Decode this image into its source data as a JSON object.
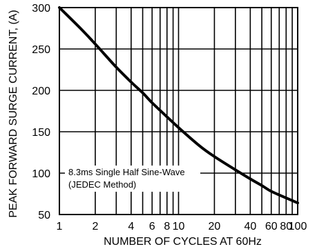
{
  "chart_data": {
    "type": "line",
    "xlabel": "NUMBER OF CYCLES AT 60Hz",
    "ylabel": "PEAK FORWARD SURGE CURRENT, (A)",
    "x_scale": "log",
    "xlim": [
      1,
      100
    ],
    "ylim": [
      50,
      300
    ],
    "x_ticks": [
      1,
      2,
      4,
      6,
      8,
      10,
      20,
      40,
      60,
      80,
      100
    ],
    "x_tick_labels": [
      "1",
      "2",
      "4",
      "6",
      "8",
      "10",
      "20",
      "40",
      "60",
      "80",
      "100"
    ],
    "y_ticks": [
      50,
      100,
      150,
      200,
      250,
      300
    ],
    "y_tick_labels": [
      "50",
      "100",
      "150",
      "200",
      "250",
      "300"
    ],
    "grid": true,
    "annotation": [
      "8.3ms Single Half Sine-Wave",
      "(JEDEC Method)"
    ],
    "series": [
      {
        "x": [
          1,
          1.5,
          2,
          3,
          4,
          5,
          6,
          8,
          10,
          15,
          20,
          30,
          40,
          50,
          60,
          80,
          100
        ],
        "y": [
          300,
          275,
          256,
          228,
          210,
          197,
          185,
          168,
          155,
          133,
          120,
          104,
          93,
          85,
          78,
          70,
          64
        ]
      }
    ]
  }
}
